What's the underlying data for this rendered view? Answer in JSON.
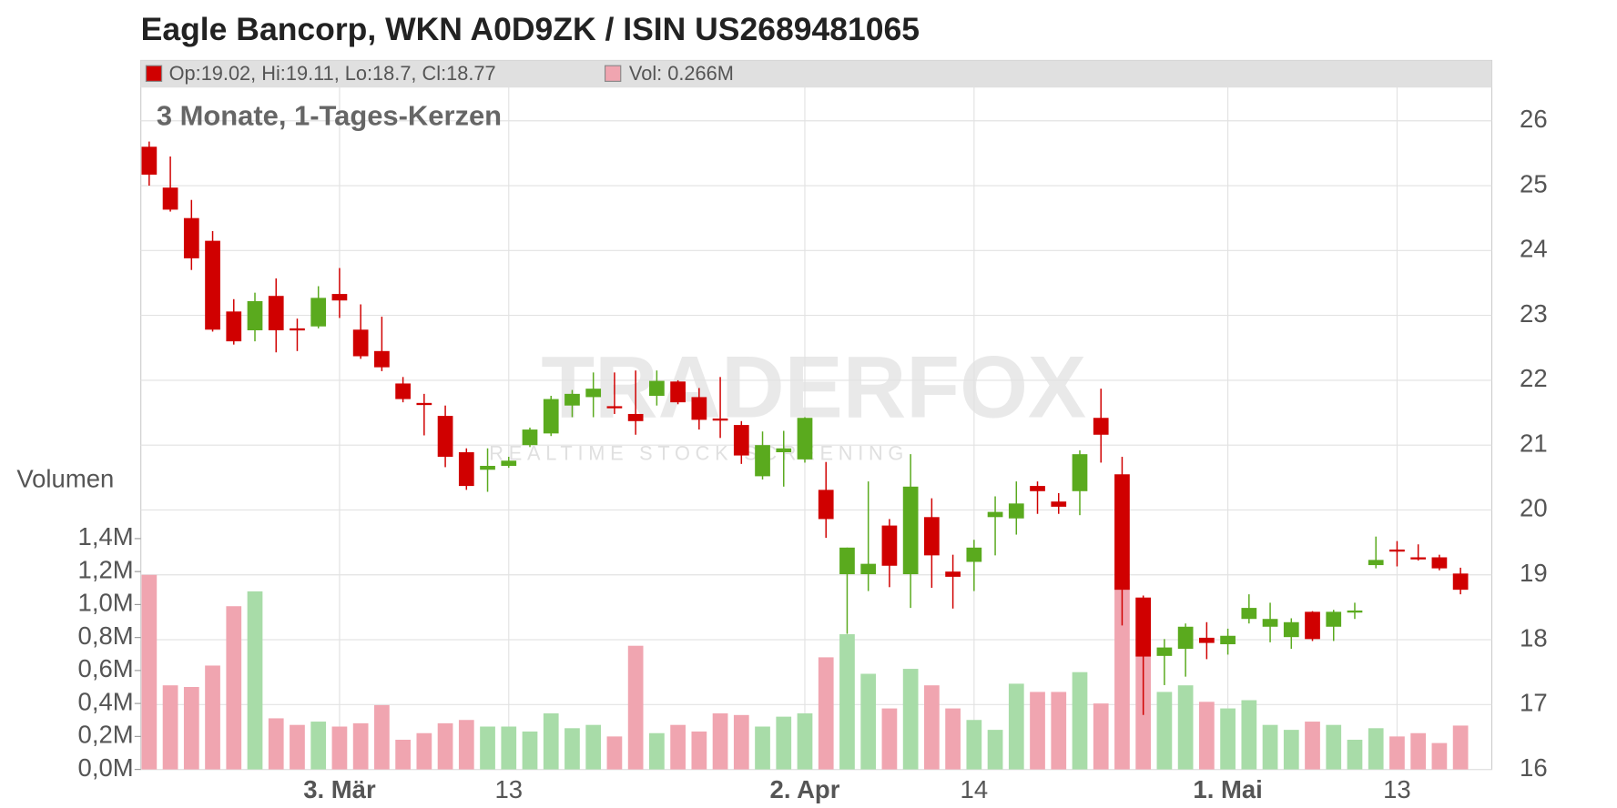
{
  "chart_data": {
    "type": "candlestick",
    "title": "Eagle Bancorp, WKN A0D9ZK / ISIN US2689481065",
    "subtitle": "3 Monate, 1-Tages-Kerzen",
    "legend": [
      "Op:19.02, Hi:19.11, Lo:18.7, Cl:18.77",
      "Vol: 0.266M"
    ],
    "watermark": "TRADERFOX",
    "watermark_sub": "REALTIME STOCK SCREENING",
    "volume_label": "Volumen",
    "up_color": "#5aaa1e",
    "down_color": "#d00000",
    "volume_up_color": "#a8dca8",
    "volume_down_color": "#f0a5b0",
    "categories": [
      null,
      null,
      null,
      null,
      null,
      null,
      null,
      null,
      null,
      "3. Mär",
      null,
      null,
      null,
      null,
      null,
      null,
      null,
      "13",
      null,
      null,
      null,
      null,
      null,
      null,
      null,
      null,
      null,
      null,
      null,
      null,
      null,
      "2. Apr",
      null,
      null,
      null,
      null,
      null,
      null,
      null,
      "14",
      null,
      null,
      null,
      null,
      null,
      null,
      null,
      null,
      null,
      null,
      null,
      "1. Mai",
      null,
      null,
      null,
      null,
      null,
      null,
      null,
      "13",
      null,
      null,
      null
    ],
    "open": [
      25.6,
      24.97,
      24.5,
      24.15,
      23.06,
      22.77,
      23.3,
      22.8,
      22.83,
      23.33,
      22.78,
      22.45,
      21.95,
      21.65,
      21.45,
      20.89,
      20.62,
      20.68,
      21.0,
      21.18,
      21.61,
      21.74,
      21.6,
      21.48,
      21.76,
      21.98,
      21.74,
      21.41,
      21.31,
      20.52,
      20.89,
      20.78,
      20.31,
      19.01,
      19.01,
      19.76,
      19.01,
      19.89,
      19.05,
      19.2,
      19.89,
      19.87,
      20.37,
      20.13,
      20.29,
      21.42,
      20.55,
      18.65,
      17.75,
      17.86,
      18.03,
      17.93,
      18.32,
      18.2,
      18.04,
      18.43,
      18.2,
      18.43,
      19.15,
      19.39,
      19.27,
      19.27,
      19.02
    ],
    "high": [
      25.68,
      25.45,
      24.78,
      24.3,
      23.25,
      23.35,
      23.57,
      22.95,
      23.45,
      23.73,
      23.17,
      22.98,
      22.05,
      21.79,
      21.61,
      20.95,
      20.95,
      20.82,
      21.27,
      21.76,
      21.85,
      22.12,
      22.12,
      22.15,
      22.15,
      22.0,
      21.88,
      22.05,
      21.37,
      21.21,
      21.22,
      21.43,
      20.74,
      19.42,
      20.44,
      19.86,
      20.86,
      20.18,
      19.31,
      19.54,
      20.21,
      20.44,
      20.44,
      20.26,
      20.92,
      21.87,
      20.82,
      18.68,
      18.01,
      18.25,
      18.27,
      18.17,
      18.7,
      18.57,
      18.33,
      18.44,
      18.46,
      18.57,
      19.59,
      19.52,
      19.47,
      19.31,
      19.11
    ],
    "low": [
      25.0,
      24.6,
      23.7,
      22.75,
      22.55,
      22.6,
      22.43,
      22.45,
      22.8,
      22.96,
      22.33,
      22.14,
      21.66,
      21.15,
      20.66,
      20.31,
      20.28,
      20.65,
      20.97,
      21.14,
      21.43,
      21.43,
      21.48,
      21.16,
      21.61,
      21.63,
      21.24,
      21.11,
      20.71,
      20.47,
      20.36,
      20.73,
      19.57,
      18.09,
      18.75,
      18.81,
      18.49,
      18.8,
      18.48,
      18.75,
      19.3,
      19.62,
      19.94,
      19.94,
      19.92,
      20.73,
      18.22,
      16.84,
      17.3,
      17.43,
      17.7,
      17.77,
      18.25,
      17.96,
      17.86,
      17.98,
      17.98,
      18.32,
      19.1,
      19.13,
      19.22,
      19.07,
      18.7
    ],
    "close": [
      25.17,
      24.63,
      23.88,
      22.78,
      22.6,
      23.22,
      22.77,
      22.77,
      23.27,
      23.23,
      22.37,
      22.2,
      21.71,
      21.62,
      20.82,
      20.37,
      20.68,
      20.76,
      21.24,
      21.71,
      21.79,
      21.87,
      21.58,
      21.37,
      21.99,
      21.66,
      21.39,
      21.39,
      20.84,
      21.0,
      20.95,
      21.42,
      19.86,
      19.42,
      19.17,
      19.14,
      20.36,
      19.3,
      18.97,
      19.42,
      19.97,
      20.1,
      20.29,
      20.05,
      20.86,
      21.16,
      18.77,
      17.74,
      17.88,
      18.2,
      17.95,
      18.06,
      18.49,
      18.32,
      18.27,
      18.01,
      18.43,
      18.45,
      19.23,
      19.37,
      19.24,
      19.1,
      18.77
    ],
    "volume": [
      1.18,
      0.51,
      0.5,
      0.63,
      0.99,
      1.08,
      0.31,
      0.27,
      0.29,
      0.26,
      0.28,
      0.39,
      0.18,
      0.22,
      0.28,
      0.3,
      0.26,
      0.26,
      0.23,
      0.34,
      0.25,
      0.27,
      0.2,
      0.75,
      0.22,
      0.27,
      0.23,
      0.34,
      0.33,
      0.26,
      0.32,
      0.34,
      0.68,
      0.82,
      0.58,
      0.37,
      0.61,
      0.51,
      0.37,
      0.3,
      0.24,
      0.52,
      0.47,
      0.47,
      0.59,
      0.4,
      1.15,
      1.04,
      0.47,
      0.51,
      0.41,
      0.37,
      0.42,
      0.27,
      0.24,
      0.29,
      0.27,
      0.18,
      0.25,
      0.2,
      0.22,
      0.16,
      0.266
    ],
    "ylim": [
      16,
      26.93
    ],
    "yticks": [
      16,
      17,
      18,
      19,
      20,
      21,
      22,
      23,
      24,
      25,
      26
    ],
    "volume_lim": [
      0,
      4.3
    ],
    "volume_ticks": [
      {
        "value": 0,
        "label": "0,0M"
      },
      {
        "value": 0.2,
        "label": "0,2M"
      },
      {
        "value": 0.4,
        "label": "0,4M"
      },
      {
        "value": 0.6,
        "label": "0,6M"
      },
      {
        "value": 0.8,
        "label": "0,8M"
      },
      {
        "value": 1.0,
        "label": "1,0M"
      },
      {
        "value": 1.2,
        "label": "1,2M"
      },
      {
        "value": 1.4,
        "label": "1,4M"
      }
    ],
    "grid": true
  }
}
